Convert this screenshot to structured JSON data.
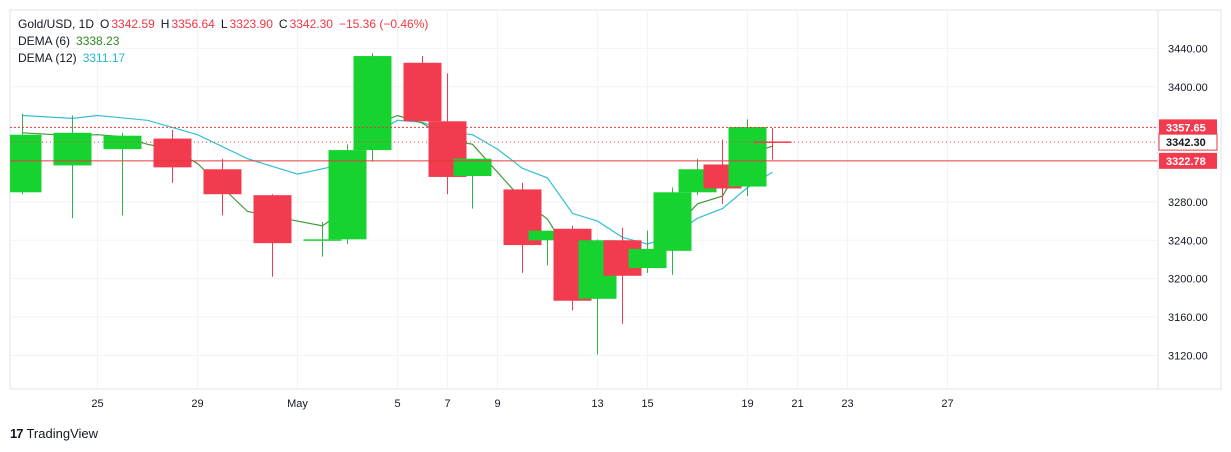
{
  "legend": {
    "symbol": "Gold/USD, 1D",
    "o_label": "O",
    "o_value": "3342.59",
    "h_label": "H",
    "h_value": "3356.64",
    "l_label": "L",
    "l_value": "3323.90",
    "c_label": "C",
    "c_value": "3342.30",
    "change": "−15.36 (−0.46%)",
    "dema6_label": "DEMA (6)",
    "dema6_value": "3338.23",
    "dema12_label": "DEMA (12)",
    "dema12_value": "3311.17"
  },
  "brand": {
    "text": "TradingView",
    "logo": "17"
  },
  "colors": {
    "up": "#16d32f",
    "down": "#f33b50",
    "dema6": "#3f9a3a",
    "dema12": "#35bfd6",
    "hline": "#e23b3b",
    "price_box": "#f33b50"
  },
  "chart_data": {
    "type": "candlestick",
    "ylim": [
      3085,
      3480
    ],
    "y_ticks": [
      "3120.00",
      "3160.00",
      "3200.00",
      "3240.00",
      "3280.00",
      "3400.00",
      "3440.00"
    ],
    "y_tick_values": [
      3120,
      3160,
      3200,
      3240,
      3280,
      3400,
      3440
    ],
    "x_ticks": [
      "25",
      "29",
      "May",
      "5",
      "7",
      "9",
      "13",
      "15",
      "19",
      "21",
      "23",
      "27"
    ],
    "x_tick_days": [
      2,
      6,
      10,
      14,
      16,
      18,
      22,
      24,
      28,
      30,
      32,
      36
    ],
    "candles": [
      {
        "d": -1,
        "o": 3290,
        "h": 3372,
        "l": 3288,
        "c": 3350
      },
      {
        "d": 1,
        "o": 3318,
        "h": 3370,
        "l": 3263,
        "c": 3352
      },
      {
        "d": 3,
        "o": 3335,
        "h": 3352,
        "l": 3266,
        "c": 3349
      },
      {
        "d": 5,
        "o": 3346,
        "h": 3355,
        "l": 3300,
        "c": 3316
      },
      {
        "d": 7,
        "o": 3314,
        "h": 3325,
        "l": 3266,
        "c": 3288
      },
      {
        "d": 9,
        "o": 3287,
        "h": 3288,
        "l": 3202,
        "c": 3237
      },
      {
        "d": 11,
        "o": 3241,
        "h": 3259,
        "l": 3223,
        "c": 3241
      },
      {
        "d": 12,
        "o": 3241,
        "h": 3340,
        "l": 3236,
        "c": 3334
      },
      {
        "d": 13,
        "o": 3334,
        "h": 3435,
        "l": 3322,
        "c": 3432
      },
      {
        "d": 15,
        "o": 3425,
        "h": 3432,
        "l": 3365,
        "c": 3364
      },
      {
        "d": 16,
        "o": 3364,
        "h": 3414,
        "l": 3288,
        "c": 3306
      },
      {
        "d": 17,
        "o": 3307,
        "h": 3325,
        "l": 3273,
        "c": 3325
      },
      {
        "d": 19,
        "o": 3293,
        "h": 3300,
        "l": 3206,
        "c": 3235
      },
      {
        "d": 20,
        "o": 3240,
        "h": 3250,
        "l": 3214,
        "c": 3250
      },
      {
        "d": 21,
        "o": 3252,
        "h": 3255,
        "l": 3167,
        "c": 3177
      },
      {
        "d": 22,
        "o": 3179,
        "h": 3241,
        "l": 3121,
        "c": 3240
      },
      {
        "d": 23,
        "o": 3240,
        "h": 3253,
        "l": 3153,
        "c": 3203
      },
      {
        "d": 24,
        "o": 3211,
        "h": 3250,
        "l": 3206,
        "c": 3231
      },
      {
        "d": 25,
        "o": 3229,
        "h": 3295,
        "l": 3204,
        "c": 3290
      },
      {
        "d": 26,
        "o": 3290,
        "h": 3325,
        "l": 3287,
        "c": 3314
      },
      {
        "d": 27,
        "o": 3319,
        "h": 3345,
        "l": 3278,
        "c": 3294
      },
      {
        "d": 28,
        "o": 3296,
        "h": 3366,
        "l": 3286,
        "c": 3358
      },
      {
        "d": 29,
        "o": 3343,
        "h": 3357,
        "l": 3324,
        "c": 3342
      }
    ],
    "dema6": [
      [
        -1,
        3352
      ],
      [
        1,
        3349
      ],
      [
        2,
        3350
      ],
      [
        3,
        3348
      ],
      [
        4,
        3340
      ],
      [
        5,
        3335
      ],
      [
        6,
        3320
      ],
      [
        7,
        3295
      ],
      [
        8,
        3270
      ],
      [
        9,
        3265
      ],
      [
        11,
        3255
      ],
      [
        12,
        3274
      ],
      [
        13,
        3360
      ],
      [
        14,
        3370
      ],
      [
        15,
        3362
      ],
      [
        16,
        3345
      ],
      [
        17,
        3340
      ],
      [
        19,
        3282
      ],
      [
        20,
        3262
      ],
      [
        21,
        3220
      ],
      [
        22,
        3214
      ],
      [
        23,
        3212
      ],
      [
        24,
        3214
      ],
      [
        25,
        3250
      ],
      [
        26,
        3278
      ],
      [
        27,
        3286
      ],
      [
        28,
        3330
      ],
      [
        29,
        3338
      ]
    ],
    "dema12": [
      [
        -1,
        3370
      ],
      [
        1,
        3367
      ],
      [
        2,
        3370
      ],
      [
        4,
        3365
      ],
      [
        6,
        3350
      ],
      [
        8,
        3325
      ],
      [
        10,
        3309
      ],
      [
        12,
        3320
      ],
      [
        13,
        3350
      ],
      [
        14,
        3365
      ],
      [
        15,
        3363
      ],
      [
        16,
        3353
      ],
      [
        17,
        3350
      ],
      [
        18,
        3335
      ],
      [
        19,
        3315
      ],
      [
        20,
        3305
      ],
      [
        21,
        3268
      ],
      [
        22,
        3260
      ],
      [
        23,
        3243
      ],
      [
        24,
        3236
      ],
      [
        25,
        3245
      ],
      [
        26,
        3263
      ],
      [
        27,
        3273
      ],
      [
        28,
        3295
      ],
      [
        29,
        3311
      ]
    ],
    "hlines": [
      {
        "value": 3357.65,
        "label": "3357.65",
        "style": "dotted"
      },
      {
        "value": 3322.78,
        "label": "3322.78",
        "style": "solid"
      }
    ],
    "current_price": {
      "value": 3342.3,
      "label": "3342.30"
    }
  }
}
